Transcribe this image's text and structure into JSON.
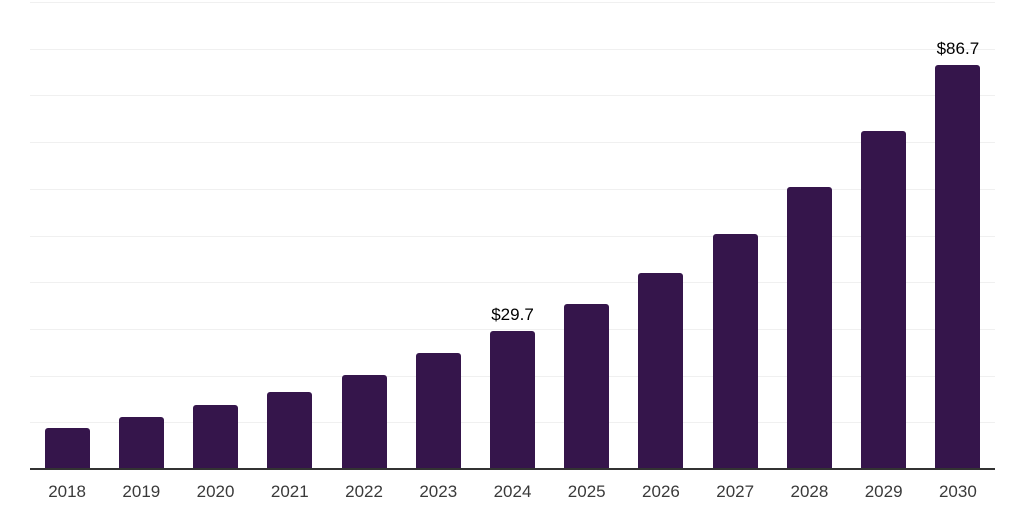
{
  "page": {
    "background": "#ffffff"
  },
  "chart_data": {
    "type": "bar",
    "title": "",
    "xlabel": "",
    "ylabel": "",
    "categories": [
      "2018",
      "2019",
      "2020",
      "2021",
      "2022",
      "2023",
      "2024",
      "2025",
      "2026",
      "2027",
      "2028",
      "2029",
      "2030"
    ],
    "values": [
      9.0,
      11.3,
      13.9,
      16.7,
      20.3,
      25.0,
      29.7,
      35.5,
      42.1,
      50.6,
      60.6,
      72.5,
      86.7
    ],
    "value_labels": {
      "2024": "$29.7",
      "2030": "$86.7"
    },
    "ylim": [
      0,
      100
    ],
    "gridline_step": 10,
    "grid": "horizontal-only",
    "y_tick_labels_visible": false,
    "legend": "none",
    "colors": {
      "bar": "#35154b",
      "axis_line": "#333333",
      "gridline": "#f0f0f0",
      "value_label": "#000000",
      "tick_label": "#3a3a3a"
    }
  }
}
